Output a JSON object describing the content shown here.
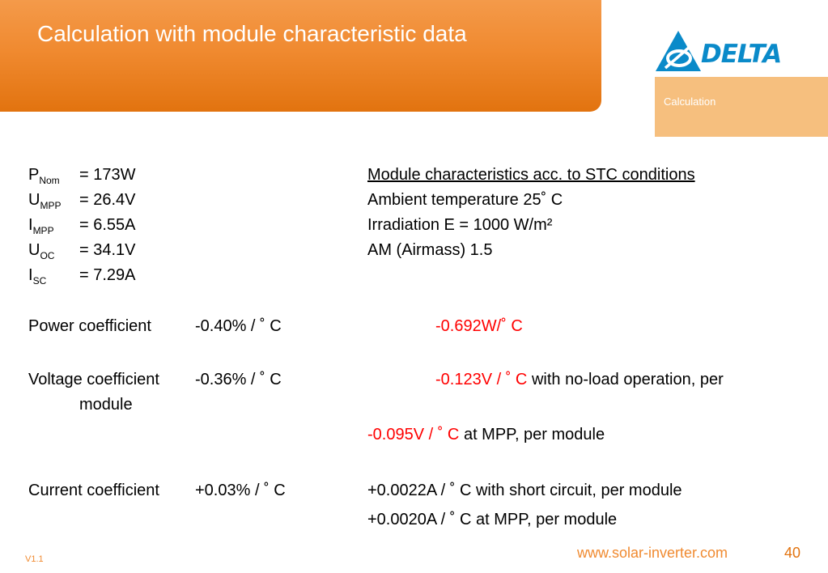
{
  "header": {
    "title": "Calculation with module characteristic data",
    "section_label": "Calculation"
  },
  "logo": {
    "text": "DELTA",
    "color": "#0a8ac9"
  },
  "params": [
    {
      "sym": "P",
      "sub": "Nom",
      "value": "= 173W"
    },
    {
      "sym": "U",
      "sub": "MPP",
      "value": "= 26.4V"
    },
    {
      "sym": "I",
      "sub": "MPP",
      "value": "= 6.55A"
    },
    {
      "sym": "U",
      "sub": "OC",
      "value": "= 34.1V"
    },
    {
      "sym": "I",
      "sub": "SC",
      "value": "= 7.29A"
    }
  ],
  "stc": {
    "heading": "Module characteristics acc. to STC conditions",
    "lines": [
      "Ambient temperature 25˚ C",
      "Irradiation E = 1000 W/m²",
      "AM (Airmass)  1.5"
    ]
  },
  "coefficients": {
    "power": {
      "label": "Power coefficient",
      "percent": "-0.40% / ˚ C",
      "value": "-0.692W/˚ C"
    },
    "voltage": {
      "label": "Voltage coefficient",
      "percent": "-0.36% / ˚ C",
      "value1": "-0.123V / ˚ C",
      "value1_suffix": " with no-load operation, per",
      "continuation": "module",
      "value2": "-0.095V / ˚ C",
      "value2_suffix": " at MPP, per module"
    },
    "current": {
      "label": "Current coefficient",
      "percent": "+0.03% / ˚ C",
      "value1": "+0.0022A / ˚ C with short circuit, per module",
      "value2": "+0.0020A / ˚ C at MPP, per module"
    }
  },
  "footer": {
    "url": "www.solar-inverter.com",
    "page": "40",
    "version": "V1.1"
  },
  "colors": {
    "orange": "#f08a30",
    "orange_light": "#f6bf7e",
    "red": "#ff0000",
    "blue": "#0a8ac9"
  }
}
